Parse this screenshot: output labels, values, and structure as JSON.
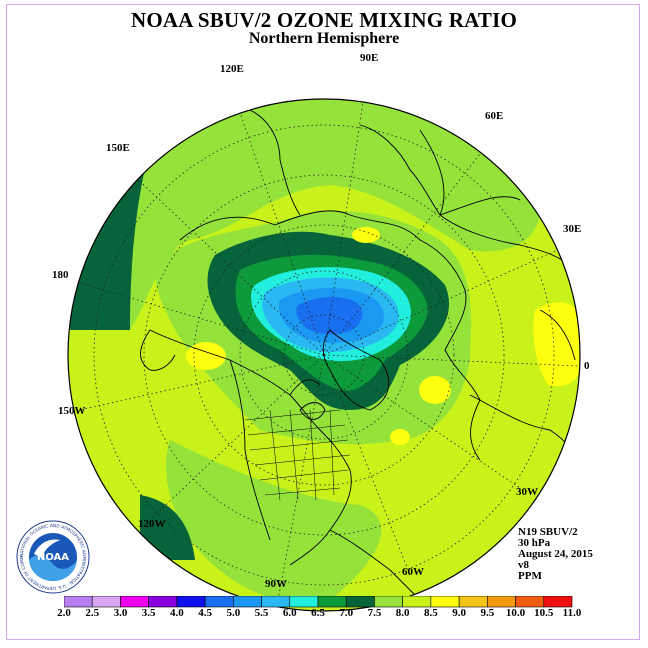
{
  "title": "NOAA SBUV/2 OZONE MIXING RATIO",
  "subtitle": "Northern Hemisphere",
  "longitude_labels": {
    "e90": "90E",
    "e120": "120E",
    "e60": "60E",
    "e150": "150E",
    "e30": "30E",
    "d180": "180",
    "d0": "0",
    "w150": "150W",
    "w30": "30W",
    "w120": "120W",
    "w60": "60W",
    "w90": "90W"
  },
  "info": {
    "satellite": "N19 SBUV/2",
    "level": "30 hPa",
    "date": "August 24, 2015",
    "version": "v8",
    "units": "PPM"
  },
  "logo": {
    "text": "NOAA",
    "ring_text": "NATIONAL OCEANIC AND ATMOSPHERIC ADMINISTRATION · U.S. DEPARTMENT OF COMMERCE"
  },
  "colorbar": {
    "ticks": [
      "2.0",
      "2.5",
      "3.0",
      "3.5",
      "4.0",
      "4.5",
      "5.0",
      "5.5",
      "6.0",
      "6.5",
      "7.0",
      "7.5",
      "8.0",
      "8.5",
      "9.0",
      "9.5",
      "10.0",
      "10.5",
      "11.0"
    ],
    "colors": [
      "#b77ff0",
      "#d8a6f2",
      "#ee00ee",
      "#8800dd",
      "#1010ee",
      "#1a6ff0",
      "#1a98f2",
      "#2ab8f2",
      "#22eedd",
      "#0c9a3a",
      "#06633a",
      "#95e33a",
      "#c8f21a",
      "#ffff10",
      "#f2c418",
      "#f29a12",
      "#f25c10",
      "#ee1010",
      "#8a4a2a"
    ]
  }
}
